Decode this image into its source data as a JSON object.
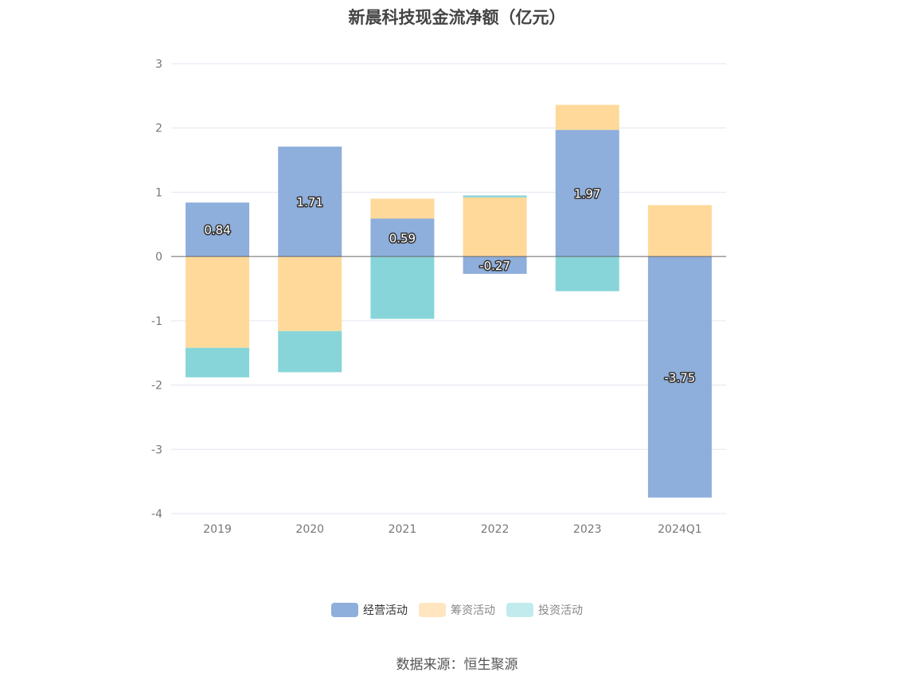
{
  "chart_data": {
    "type": "bar",
    "stacked": true,
    "title": "新晨科技现金流净额（亿元）",
    "categories": [
      "2019",
      "2020",
      "2021",
      "2022",
      "2023",
      "2024Q1"
    ],
    "series": [
      {
        "name": "经营活动",
        "color": "#8eaedb",
        "values": [
          0.84,
          1.71,
          0.59,
          -0.27,
          1.97,
          -3.75
        ],
        "labeled": true
      },
      {
        "name": "筹资活动",
        "color": "#ffd99a",
        "values": [
          -1.42,
          -1.16,
          0.31,
          0.92,
          0.39,
          0.8
        ]
      },
      {
        "name": "投资活动",
        "color": "#88d5d9",
        "values": [
          -0.46,
          -0.64,
          -0.97,
          0.03,
          -0.54,
          0.0
        ]
      }
    ],
    "ylim": [
      -4,
      3
    ],
    "yticks": [
      3,
      2,
      1,
      0,
      -1,
      -2,
      -3,
      -4
    ],
    "grid": true,
    "legend_position": "bottom"
  },
  "legend": [
    {
      "label": "经营活动",
      "color": "#8eaedb"
    },
    {
      "label": "筹资活动",
      "color": "#ffe5c0"
    },
    {
      "label": "投资活动",
      "color": "#c2ebed"
    }
  ],
  "source": "数据来源：恒生聚源"
}
